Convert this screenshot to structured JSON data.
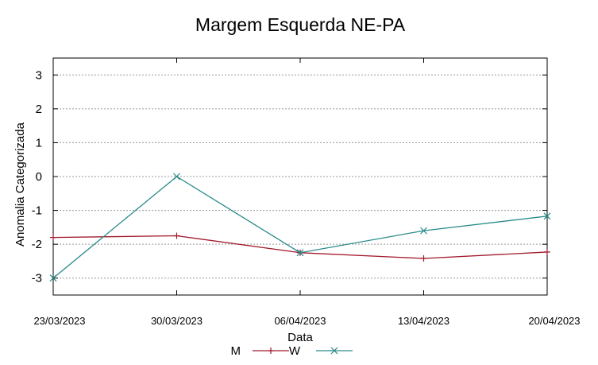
{
  "chart_data": {
    "type": "line",
    "title": "Margem Esquerda NE-PA",
    "xlabel": "Data",
    "ylabel": "Anomalia Categorizada",
    "categories": [
      "23/03/2023",
      "30/03/2023",
      "06/04/2023",
      "13/04/2023",
      "20/04/2023"
    ],
    "ylim": [
      -3.5,
      3.5
    ],
    "yticks": [
      3,
      2,
      1,
      0,
      -1,
      -2,
      -3
    ],
    "grid": true,
    "legend_position": "bottom",
    "series": [
      {
        "name": "M",
        "color": "#a0192b",
        "marker": "plus",
        "values": [
          -1.8,
          -1.75,
          -2.25,
          -2.42,
          -2.23
        ]
      },
      {
        "name": "W",
        "color": "#2a8a8a",
        "marker": "cross",
        "values": [
          -3.0,
          0.0,
          -2.25,
          -1.6,
          -1.17
        ]
      }
    ]
  }
}
